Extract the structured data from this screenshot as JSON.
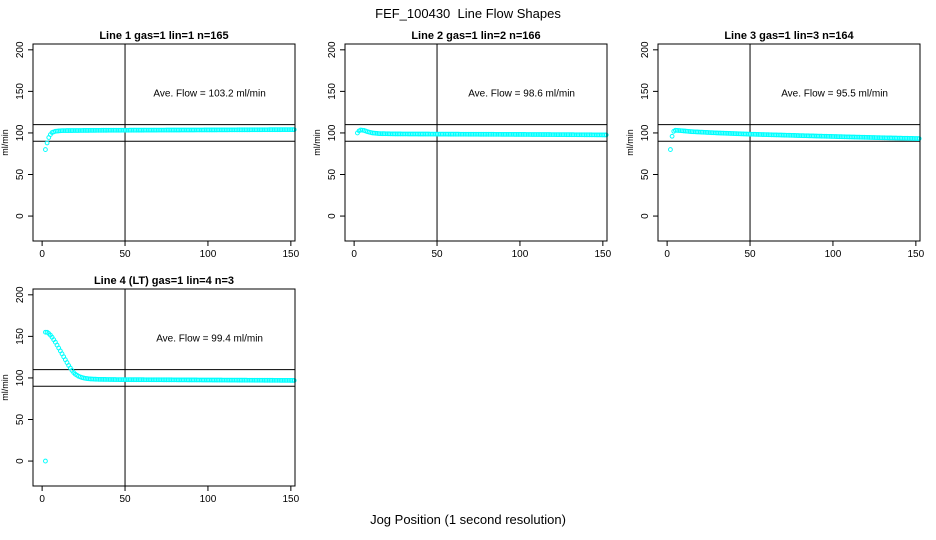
{
  "page": {
    "title": "FEF_100430  Line Flow Shapes",
    "xlabel": "Jog Position (1 second resolution)"
  },
  "colors": {
    "points": "#00ffff",
    "axis": "#000000",
    "reference_lines": "#000000",
    "background": "#ffffff"
  },
  "chart_data": {
    "type": "scatter",
    "title": "FEF_100430  Line Flow Shapes",
    "xlabel": "Jog Position (1 second resolution)",
    "ylabel": "ml/min",
    "xlim": [
      -5.5,
      152.5
    ],
    "ylim": [
      -30,
      207
    ],
    "xticks": [
      0,
      50,
      100,
      150
    ],
    "yticks": [
      0,
      50,
      100,
      150,
      200
    ],
    "grid": false,
    "reference_lines": {
      "vertical_x": 50,
      "horizontal_y": [
        90,
        110
      ]
    },
    "marker": {
      "shape": "open-circle",
      "color": "#00ffff",
      "radius_px": 1.9
    },
    "sample_step": 1,
    "annotation_anchor": {
      "x": 101,
      "y": 148
    },
    "panels": [
      {
        "title": "Line 1 gas=1 lin=1 n=165",
        "annotation": "Ave. Flow =  103.2  ml/min",
        "ave_flow_ml_min": 103.2,
        "n": 165,
        "anchors": [
          [
            2,
            80
          ],
          [
            3,
            88
          ],
          [
            4,
            94.5
          ],
          [
            5,
            98
          ],
          [
            6,
            100.5
          ],
          [
            8,
            102
          ],
          [
            12,
            102.8
          ],
          [
            40,
            103.2
          ],
          [
            100,
            103.6
          ],
          [
            152,
            104
          ]
        ],
        "extra_points": []
      },
      {
        "title": "Line 2 gas=1 lin=2 n=166",
        "annotation": "Ave. Flow =  98.6  ml/min",
        "ave_flow_ml_min": 98.6,
        "n": 166,
        "anchors": [
          [
            2,
            100
          ],
          [
            3,
            102.5
          ],
          [
            4,
            103.5
          ],
          [
            6,
            103
          ],
          [
            8,
            101.5
          ],
          [
            11,
            100
          ],
          [
            15,
            99.2
          ],
          [
            25,
            98.8
          ],
          [
            60,
            98.5
          ],
          [
            100,
            98.2
          ],
          [
            130,
            97.9
          ],
          [
            152,
            97.6
          ]
        ],
        "extra_points": []
      },
      {
        "title": "Line 3 gas=1 lin=3 n=164",
        "annotation": "Ave. Flow =  95.5  ml/min",
        "ave_flow_ml_min": 95.5,
        "n": 164,
        "anchors": [
          [
            2,
            80
          ],
          [
            3,
            96
          ],
          [
            4,
            102
          ],
          [
            5,
            103.2
          ],
          [
            8,
            102.8
          ],
          [
            15,
            101.5
          ],
          [
            30,
            100
          ],
          [
            50,
            98.5
          ],
          [
            80,
            96.8
          ],
          [
            110,
            95.2
          ],
          [
            130,
            94.2
          ],
          [
            152,
            93.2
          ]
        ],
        "extra_points": []
      },
      {
        "title": "Line 4 (LT) gas=1 lin=4 n=3",
        "annotation": "Ave. Flow =  99.4  ml/min",
        "ave_flow_ml_min": 99.4,
        "n": 3,
        "anchors": [
          [
            2,
            155
          ],
          [
            3,
            155
          ],
          [
            4,
            153.5
          ],
          [
            5,
            151.5
          ],
          [
            6,
            149
          ],
          [
            7,
            146
          ],
          [
            8,
            143
          ],
          [
            9,
            139.5
          ],
          [
            10,
            136
          ],
          [
            11,
            132.5
          ],
          [
            12,
            129
          ],
          [
            13,
            125.5
          ],
          [
            14,
            122
          ],
          [
            15,
            118.5
          ],
          [
            16,
            115
          ],
          [
            17,
            112
          ],
          [
            18,
            109
          ],
          [
            19,
            106.5
          ],
          [
            20,
            104.5
          ],
          [
            22,
            102
          ],
          [
            24,
            100.5
          ],
          [
            26,
            99.5
          ],
          [
            29,
            98.8
          ],
          [
            34,
            98.3
          ],
          [
            45,
            98
          ],
          [
            70,
            97.8
          ],
          [
            110,
            97.4
          ],
          [
            152,
            97
          ]
        ],
        "extra_points": [
          [
            2,
            0
          ]
        ]
      }
    ]
  }
}
